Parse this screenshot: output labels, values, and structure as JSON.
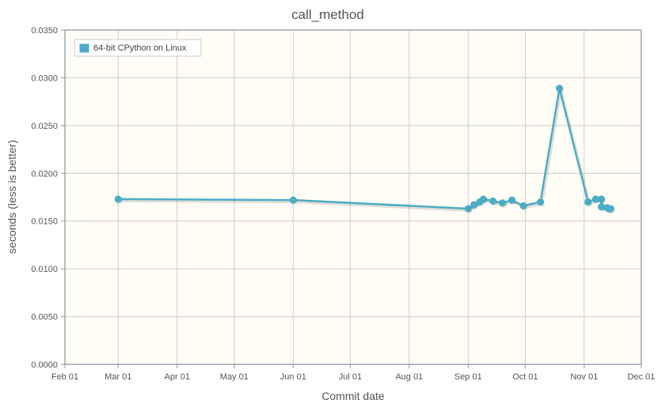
{
  "chart_data": {
    "type": "line",
    "title": "call_method",
    "xlabel": "Commit date",
    "ylabel": "seconds (less is better)",
    "x_ticks": [
      "Feb 01",
      "Mar 01",
      "Apr 01",
      "May 01",
      "Jun 01",
      "Jul 01",
      "Aug 01",
      "Sep 01",
      "Oct 01",
      "Nov 01",
      "Dec 01"
    ],
    "y_ticks": [
      "0.0000",
      "0.0050",
      "0.0100",
      "0.0150",
      "0.0200",
      "0.0250",
      "0.0300",
      "0.0350"
    ],
    "xlim": [
      "Feb 01",
      "Dec 01"
    ],
    "ylim": [
      0,
      0.035
    ],
    "grid": true,
    "legend_position": "top-left",
    "series": [
      {
        "name": "64-bit CPython on Linux",
        "color": "#4bacc6",
        "points": [
          {
            "x": "Mar 01",
            "y": 0.0173
          },
          {
            "x": "Jun 01",
            "y": 0.0172
          },
          {
            "x": "Sep 01",
            "y": 0.0163
          },
          {
            "x": "Sep 04",
            "y": 0.0167
          },
          {
            "x": "Sep 07",
            "y": 0.017
          },
          {
            "x": "Sep 09",
            "y": 0.0173
          },
          {
            "x": "Sep 14",
            "y": 0.0171
          },
          {
            "x": "Sep 19",
            "y": 0.0169
          },
          {
            "x": "Sep 24",
            "y": 0.0172
          },
          {
            "x": "Sep 30",
            "y": 0.0166
          },
          {
            "x": "Oct 09",
            "y": 0.017
          },
          {
            "x": "Oct 19",
            "y": 0.0289
          },
          {
            "x": "Nov 03",
            "y": 0.017
          },
          {
            "x": "Nov 07",
            "y": 0.0173
          },
          {
            "x": "Nov 10",
            "y": 0.0173
          },
          {
            "x": "Nov 10",
            "y": 0.0165
          },
          {
            "x": "Nov 13",
            "y": 0.0164
          },
          {
            "x": "Nov 14",
            "y": 0.0163
          },
          {
            "x": "Nov 15",
            "y": 0.0163
          }
        ]
      }
    ]
  }
}
